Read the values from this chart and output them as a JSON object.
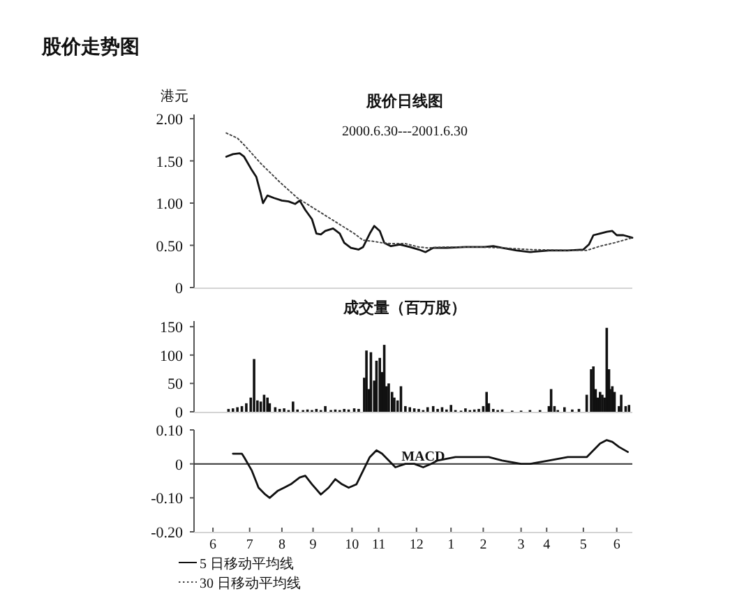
{
  "chart_data": [
    {
      "type": "line",
      "title": "股价日线图",
      "subtitle": "2000.6.30---2001.6.30",
      "ylabel": "港元",
      "annotations": [
        "股价走势图"
      ],
      "legend": "bottom left",
      "tick_labels": "y",
      "xlim": [
        "2000-06-01",
        "2001-06-30"
      ],
      "ylim": [
        0,
        2.05
      ],
      "yticks": [
        0,
        {
          "value": 0.5,
          "label": "0.50"
        },
        {
          "value": 1,
          "label": "1.00"
        },
        {
          "value": 1.5,
          "label": "1.50"
        },
        {
          "value": 2,
          "label": "2.00"
        }
      ],
      "series": [
        {
          "name": "5 日移动平均线",
          "color": "#111111",
          "line_style": "solid",
          "x": [
            "2000-06-30",
            "2000-07-06",
            "2000-07-12",
            "2000-07-16",
            "2000-07-23",
            "2000-07-27",
            "2000-07-31",
            "2000-08-02",
            "2000-08-06",
            "2000-08-12",
            "2000-08-19",
            "2000-08-25",
            "2000-08-31",
            "2000-09-04",
            "2000-09-09",
            "2000-09-15",
            "2000-09-19",
            "2000-09-23",
            "2000-09-27",
            "2000-10-04",
            "2000-10-10",
            "2000-10-14",
            "2000-10-20",
            "2000-10-27",
            "2000-10-31",
            "2000-11-06",
            "2000-11-10",
            "2000-11-15",
            "2000-11-19",
            "2000-11-25",
            "2000-12-03",
            "2000-12-12",
            "2000-12-20",
            "2000-12-26",
            "2001-01-02",
            "2001-01-14",
            "2001-01-31",
            "2001-02-12",
            "2001-02-17",
            "2001-02-25",
            "2001-03-05",
            "2001-03-18",
            "2001-03-30",
            "2001-04-16",
            "2001-05-03",
            "2001-05-17",
            "2001-05-22",
            "2001-05-26",
            "2001-06-01",
            "2001-06-07",
            "2001-06-12",
            "2001-06-16",
            "2001-06-22",
            "2001-06-30"
          ],
          "values": [
            1.55,
            1.58,
            1.59,
            1.55,
            1.39,
            1.31,
            1.11,
            1.0,
            1.09,
            1.06,
            1.03,
            1.02,
            0.99,
            1.03,
            0.92,
            0.81,
            0.64,
            0.63,
            0.67,
            0.7,
            0.64,
            0.53,
            0.47,
            0.45,
            0.48,
            0.64,
            0.73,
            0.67,
            0.53,
            0.49,
            0.51,
            0.48,
            0.45,
            0.42,
            0.47,
            0.47,
            0.48,
            0.48,
            0.48,
            0.49,
            0.47,
            0.44,
            0.42,
            0.44,
            0.44,
            0.45,
            0.51,
            0.62,
            0.64,
            0.66,
            0.67,
            0.62,
            0.62,
            0.59
          ]
        },
        {
          "name": "30 日移动平均线",
          "color": "#444444",
          "line_style": "dotted",
          "x": [
            "2000-06-30",
            "2000-07-10",
            "2000-07-16",
            "2000-07-31",
            "2000-08-17",
            "2000-09-02",
            "2000-09-19",
            "2000-10-06",
            "2000-10-23",
            "2000-10-31",
            "2000-11-08",
            "2000-11-17",
            "2000-11-25",
            "2000-12-08",
            "2000-12-20",
            "2000-12-28",
            "2001-01-14",
            "2001-02-12",
            "2001-03-05",
            "2001-03-30",
            "2001-05-03",
            "2001-05-20",
            "2001-06-01",
            "2001-06-14",
            "2001-06-30"
          ],
          "values": [
            1.83,
            1.77,
            1.69,
            1.47,
            1.25,
            1.06,
            0.92,
            0.78,
            0.64,
            0.56,
            0.55,
            0.53,
            0.52,
            0.52,
            0.48,
            0.47,
            0.48,
            0.48,
            0.47,
            0.45,
            0.44,
            0.44,
            0.49,
            0.53,
            0.59
          ]
        }
      ]
    },
    {
      "type": "bar",
      "title": "成交量（百万股）",
      "tick_labels": "y",
      "xlim": [
        "2000-06-01",
        "2001-06-30"
      ],
      "ylim": [
        0,
        160
      ],
      "yticks": [
        0,
        50,
        100,
        150
      ],
      "color": "#111111",
      "x": [
        "2000-07-02",
        "2000-07-06",
        "2000-07-10",
        "2000-07-14",
        "2000-07-18",
        "2000-07-22",
        "2000-07-25",
        "2000-07-28",
        "2000-07-31",
        "2000-08-03",
        "2000-08-06",
        "2000-08-08",
        "2000-08-13",
        "2000-08-17",
        "2000-08-21",
        "2000-08-25",
        "2000-08-29",
        "2000-09-02",
        "2000-09-07",
        "2000-09-11",
        "2000-09-15",
        "2000-09-19",
        "2000-09-23",
        "2000-09-27",
        "2000-10-02",
        "2000-10-06",
        "2000-10-10",
        "2000-10-14",
        "2000-10-18",
        "2000-10-23",
        "2000-10-27",
        "2000-11-01",
        "2000-11-03",
        "2000-11-05",
        "2000-11-07",
        "2000-11-10",
        "2000-11-12",
        "2000-11-15",
        "2000-11-17",
        "2000-11-19",
        "2000-11-21",
        "2000-11-23",
        "2000-11-26",
        "2000-11-28",
        "2000-12-01",
        "2000-12-04",
        "2000-12-08",
        "2000-12-12",
        "2000-12-16",
        "2000-12-20",
        "2000-12-24",
        "2000-12-28",
        "2001-01-02",
        "2001-01-06",
        "2001-01-10",
        "2001-01-14",
        "2001-01-18",
        "2001-01-22",
        "2001-01-27",
        "2001-01-31",
        "2001-02-04",
        "2001-02-08",
        "2001-02-12",
        "2001-02-16",
        "2001-02-19",
        "2001-02-21",
        "2001-02-25",
        "2001-03-01",
        "2001-03-05",
        "2001-03-14",
        "2001-03-22",
        "2001-03-30",
        "2001-04-08",
        "2001-04-16",
        "2001-04-18",
        "2001-04-21",
        "2001-04-24",
        "2001-04-30",
        "2001-05-07",
        "2001-05-13",
        "2001-05-20",
        "2001-05-24",
        "2001-05-26",
        "2001-05-28",
        "2001-05-30",
        "2001-06-01",
        "2001-06-03",
        "2001-06-05",
        "2001-06-07",
        "2001-06-09",
        "2001-06-10",
        "2001-06-12",
        "2001-06-14",
        "2001-06-18",
        "2001-06-20",
        "2001-06-24",
        "2001-06-27"
      ],
      "values": [
        5,
        6,
        8,
        10,
        15,
        25,
        93,
        20,
        18,
        30,
        25,
        15,
        8,
        5,
        6,
        3,
        18,
        4,
        3,
        4,
        3,
        5,
        3,
        10,
        3,
        4,
        3,
        5,
        4,
        6,
        5,
        60,
        108,
        40,
        105,
        55,
        90,
        95,
        70,
        118,
        45,
        50,
        35,
        25,
        20,
        45,
        10,
        8,
        6,
        5,
        3,
        8,
        10,
        5,
        8,
        4,
        12,
        3,
        2,
        6,
        3,
        4,
        5,
        10,
        35,
        15,
        5,
        3,
        4,
        2,
        2,
        3,
        3,
        10,
        40,
        10,
        3,
        8,
        4,
        5,
        30,
        75,
        80,
        40,
        25,
        35,
        30,
        25,
        148,
        75,
        40,
        45,
        35,
        10,
        30,
        10,
        12
      ]
    },
    {
      "type": "line",
      "tick_labels": "xy",
      "xlim": [
        "2000-06-01",
        "2001-06-30"
      ],
      "ylim": [
        -0.2,
        0.1
      ],
      "yticks": [
        {
          "value": -0.2,
          "label": "-0.20"
        },
        {
          "value": -0.1,
          "label": "-0.10"
        },
        0,
        {
          "value": 0.1,
          "label": "0.10"
        }
      ],
      "xticks": [
        {
          "value": "2000-06-18",
          "label": "6"
        },
        {
          "value": "2000-07-21",
          "label": "7"
        },
        {
          "value": "2000-08-19",
          "label": "8"
        },
        {
          "value": "2000-09-16",
          "label": "9"
        },
        {
          "value": "2000-10-21",
          "label": "10"
        },
        {
          "value": "2000-11-14",
          "label": "11"
        },
        {
          "value": "2000-12-18",
          "label": "12"
        },
        {
          "value": "2001-01-18",
          "label": "1"
        },
        {
          "value": "2001-02-16",
          "label": "2"
        },
        {
          "value": "2001-03-22",
          "label": "3"
        },
        {
          "value": "2001-04-14",
          "label": "4"
        },
        {
          "value": "2001-05-17",
          "label": "5"
        },
        {
          "value": "2001-06-16",
          "label": "6"
        }
      ],
      "ref_lines": [
        {
          "axis": "y",
          "value": 0,
          "color": "#333333"
        }
      ],
      "series": [
        {
          "name": "MACD",
          "color": "#111111",
          "x": [
            "2000-07-06",
            "2000-07-14",
            "2000-07-16",
            "2000-07-23",
            "2000-07-29",
            "2000-08-04",
            "2000-08-08",
            "2000-08-15",
            "2000-08-21",
            "2000-08-27",
            "2000-09-04",
            "2000-09-09",
            "2000-09-15",
            "2000-09-23",
            "2000-09-30",
            "2000-10-06",
            "2000-10-12",
            "2000-10-18",
            "2000-10-25",
            "2000-10-31",
            "2000-11-06",
            "2000-11-12",
            "2000-11-17",
            "2000-11-23",
            "2000-11-29",
            "2000-12-08",
            "2000-12-16",
            "2000-12-24",
            "2000-12-31",
            "2001-01-06",
            "2001-01-22",
            "2001-02-08",
            "2001-02-21",
            "2001-03-05",
            "2001-03-22",
            "2001-03-30",
            "2001-04-16",
            "2001-05-03",
            "2001-05-20",
            "2001-05-26",
            "2001-06-01",
            "2001-06-07",
            "2001-06-12",
            "2001-06-18",
            "2001-06-26"
          ],
          "values": [
            0.03,
            0.03,
            0.02,
            -0.02,
            -0.07,
            -0.09,
            -0.1,
            -0.08,
            -0.07,
            -0.06,
            -0.04,
            -0.035,
            -0.06,
            -0.09,
            -0.07,
            -0.045,
            -0.06,
            -0.07,
            -0.06,
            -0.02,
            0.02,
            0.04,
            0.03,
            0.01,
            -0.01,
            0.0,
            0.0,
            -0.01,
            0.0,
            0.01,
            0.02,
            0.02,
            0.02,
            0.01,
            0.0,
            0.0,
            0.01,
            0.02,
            0.02,
            0.04,
            0.06,
            0.07,
            0.065,
            0.05,
            0.035
          ]
        }
      ]
    }
  ]
}
